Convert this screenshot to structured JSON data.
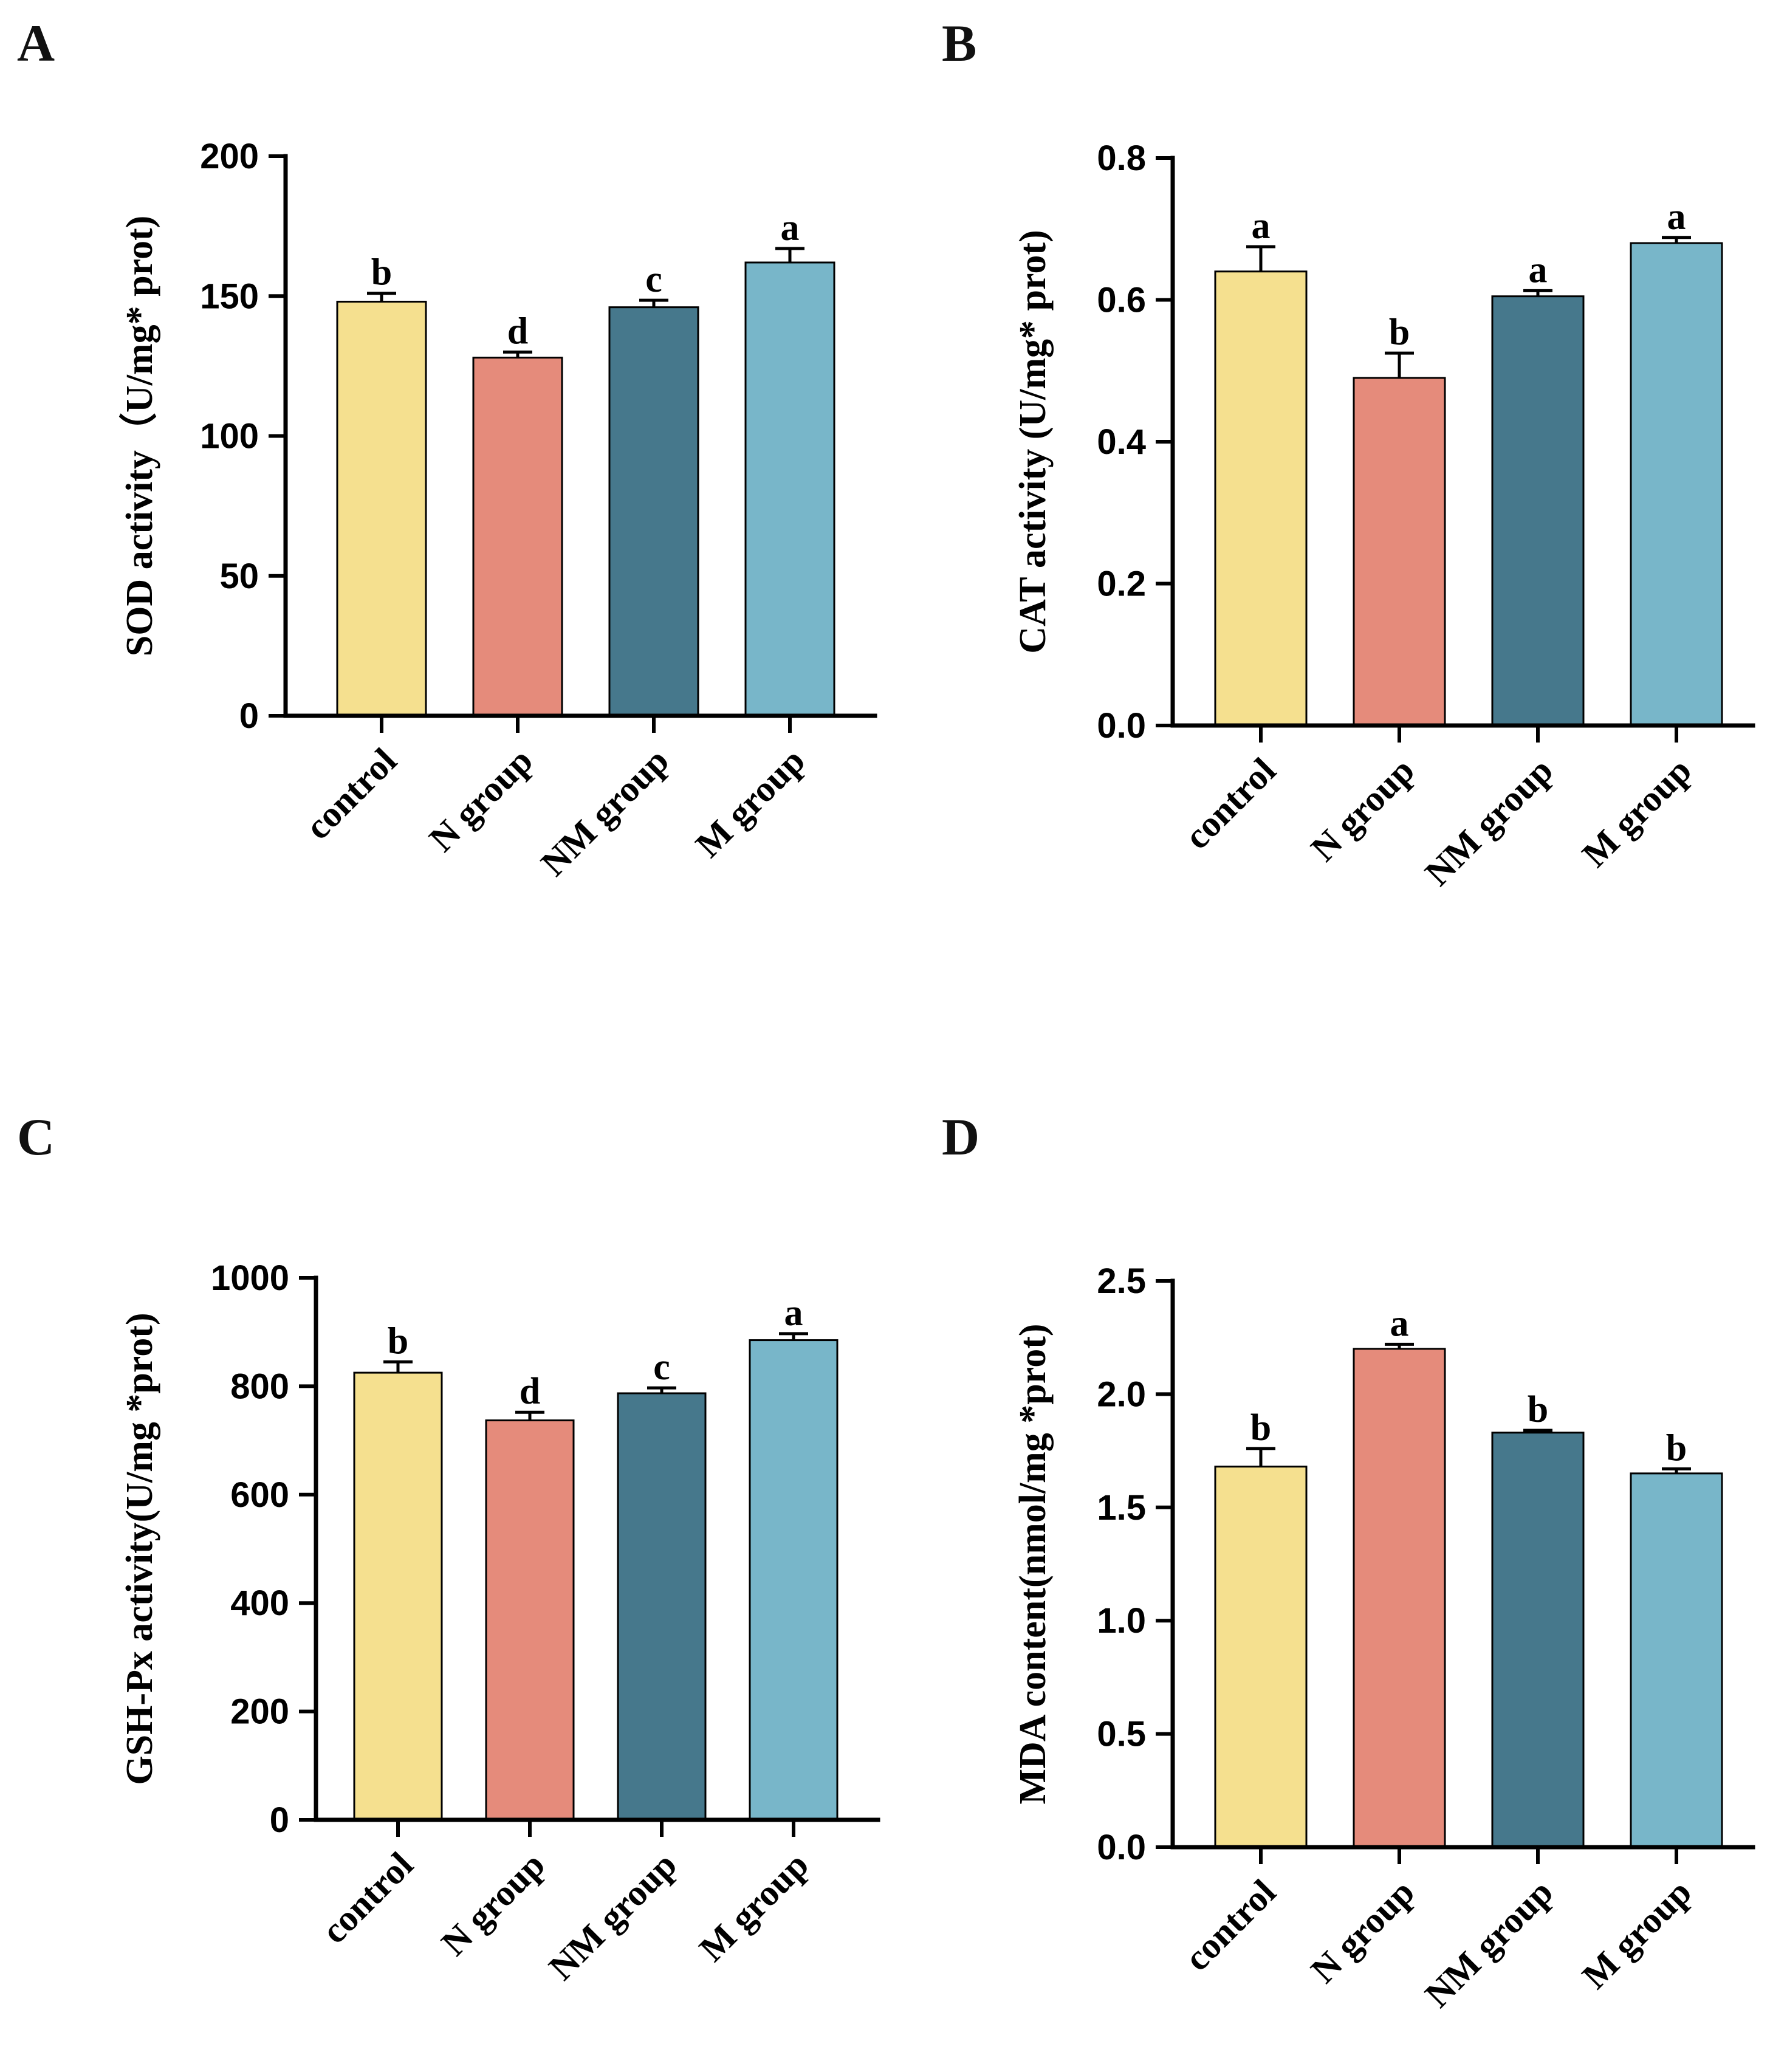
{
  "chart_data": [
    {
      "type": "bar",
      "panel": "A",
      "ylabel": "SOD activity（U/mg* prot)",
      "ylim": [
        0,
        200
      ],
      "yticks": [
        0,
        50,
        100,
        150,
        200
      ],
      "categories": [
        "control",
        "N group",
        "NM group",
        "M group"
      ],
      "values": [
        148,
        128,
        146,
        162
      ],
      "errors": [
        3,
        2,
        2.5,
        5
      ],
      "significance": [
        "b",
        "d",
        "c",
        "a"
      ],
      "colors": [
        "#F5E08F",
        "#E58B7B",
        "#46788C",
        "#78B6C9"
      ]
    },
    {
      "type": "bar",
      "panel": "B",
      "ylabel": "CAT activity (U/mg* prot)",
      "ylim": [
        0,
        0.8
      ],
      "yticks": [
        "0.0",
        "0.2",
        "0.4",
        "0.6",
        "0.8"
      ],
      "categories": [
        "control",
        "N group",
        "NM group",
        "M group"
      ],
      "values": [
        0.64,
        0.49,
        0.605,
        0.68
      ],
      "errors": [
        0.035,
        0.035,
        0.008,
        0.008
      ],
      "significance": [
        "a",
        "b",
        "a",
        "a"
      ],
      "colors": [
        "#F5E08F",
        "#E58B7B",
        "#46788C",
        "#78B6C9"
      ]
    },
    {
      "type": "bar",
      "panel": "C",
      "ylabel": "GSH-Px activity(U/mg *prot)",
      "ylim": [
        0,
        1000
      ],
      "yticks": [
        0,
        200,
        400,
        600,
        800,
        1000
      ],
      "categories": [
        "control",
        "N group",
        "NM group",
        "M group"
      ],
      "values": [
        825,
        737,
        787,
        885
      ],
      "errors": [
        20,
        15,
        10,
        12
      ],
      "significance": [
        "b",
        "d",
        "c",
        "a"
      ],
      "colors": [
        "#F5E08F",
        "#E58B7B",
        "#46788C",
        "#78B6C9"
      ]
    },
    {
      "type": "bar",
      "panel": "D",
      "ylabel": "MDA content(nmol/mg *prot)",
      "ylim": [
        0,
        2.5
      ],
      "yticks": [
        "0.0",
        "0.5",
        "1.0",
        "1.5",
        "2.0",
        "2.5"
      ],
      "categories": [
        "control",
        "N group",
        "NM group",
        "M group"
      ],
      "values": [
        1.68,
        2.2,
        1.83,
        1.65
      ],
      "errors": [
        0.08,
        0.02,
        0.01,
        0.02
      ],
      "significance": [
        "b",
        "a",
        "b",
        "b"
      ],
      "colors": [
        "#F5E08F",
        "#E58B7B",
        "#46788C",
        "#78B6C9"
      ]
    }
  ]
}
